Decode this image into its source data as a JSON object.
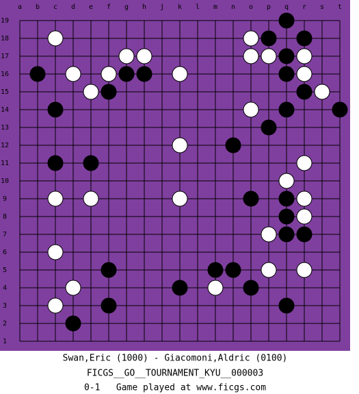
{
  "board": {
    "columns": [
      "a",
      "b",
      "c",
      "d",
      "e",
      "f",
      "g",
      "h",
      "j",
      "k",
      "l",
      "m",
      "n",
      "o",
      "p",
      "q",
      "r",
      "s",
      "t"
    ],
    "rows": [
      19,
      18,
      17,
      16,
      15,
      14,
      13,
      12,
      11,
      10,
      9,
      8,
      7,
      6,
      5,
      4,
      3,
      2,
      1
    ],
    "stones": [
      {
        "col": "q",
        "row": 19,
        "color": "black"
      },
      {
        "col": "c",
        "row": 18,
        "color": "white"
      },
      {
        "col": "o",
        "row": 18,
        "color": "white"
      },
      {
        "col": "p",
        "row": 18,
        "color": "black"
      },
      {
        "col": "r",
        "row": 18,
        "color": "black"
      },
      {
        "col": "g",
        "row": 17,
        "color": "white"
      },
      {
        "col": "h",
        "row": 17,
        "color": "white"
      },
      {
        "col": "o",
        "row": 17,
        "color": "white"
      },
      {
        "col": "p",
        "row": 17,
        "color": "white"
      },
      {
        "col": "q",
        "row": 17,
        "color": "black"
      },
      {
        "col": "r",
        "row": 17,
        "color": "white"
      },
      {
        "col": "b",
        "row": 16,
        "color": "black"
      },
      {
        "col": "d",
        "row": 16,
        "color": "white"
      },
      {
        "col": "f",
        "row": 16,
        "color": "white"
      },
      {
        "col": "g",
        "row": 16,
        "color": "black"
      },
      {
        "col": "h",
        "row": 16,
        "color": "black"
      },
      {
        "col": "k",
        "row": 16,
        "color": "white"
      },
      {
        "col": "q",
        "row": 16,
        "color": "black"
      },
      {
        "col": "r",
        "row": 16,
        "color": "white"
      },
      {
        "col": "e",
        "row": 15,
        "color": "white"
      },
      {
        "col": "f",
        "row": 15,
        "color": "black"
      },
      {
        "col": "r",
        "row": 15,
        "color": "black"
      },
      {
        "col": "s",
        "row": 15,
        "color": "white"
      },
      {
        "col": "c",
        "row": 14,
        "color": "black"
      },
      {
        "col": "o",
        "row": 14,
        "color": "white"
      },
      {
        "col": "q",
        "row": 14,
        "color": "black"
      },
      {
        "col": "t",
        "row": 14,
        "color": "black"
      },
      {
        "col": "p",
        "row": 13,
        "color": "black"
      },
      {
        "col": "k",
        "row": 12,
        "color": "white"
      },
      {
        "col": "n",
        "row": 12,
        "color": "black"
      },
      {
        "col": "c",
        "row": 11,
        "color": "black"
      },
      {
        "col": "e",
        "row": 11,
        "color": "black"
      },
      {
        "col": "r",
        "row": 11,
        "color": "white"
      },
      {
        "col": "q",
        "row": 10,
        "color": "white"
      },
      {
        "col": "c",
        "row": 9,
        "color": "white"
      },
      {
        "col": "e",
        "row": 9,
        "color": "white"
      },
      {
        "col": "k",
        "row": 9,
        "color": "white"
      },
      {
        "col": "o",
        "row": 9,
        "color": "black"
      },
      {
        "col": "q",
        "row": 9,
        "color": "black"
      },
      {
        "col": "r",
        "row": 9,
        "color": "white"
      },
      {
        "col": "q",
        "row": 8,
        "color": "black"
      },
      {
        "col": "r",
        "row": 8,
        "color": "white"
      },
      {
        "col": "p",
        "row": 7,
        "color": "white"
      },
      {
        "col": "q",
        "row": 7,
        "color": "black"
      },
      {
        "col": "r",
        "row": 7,
        "color": "black"
      },
      {
        "col": "c",
        "row": 6,
        "color": "white"
      },
      {
        "col": "f",
        "row": 5,
        "color": "black"
      },
      {
        "col": "m",
        "row": 5,
        "color": "black"
      },
      {
        "col": "n",
        "row": 5,
        "color": "black"
      },
      {
        "col": "p",
        "row": 5,
        "color": "white"
      },
      {
        "col": "r",
        "row": 5,
        "color": "white"
      },
      {
        "col": "d",
        "row": 4,
        "color": "white"
      },
      {
        "col": "k",
        "row": 4,
        "color": "black"
      },
      {
        "col": "m",
        "row": 4,
        "color": "white"
      },
      {
        "col": "o",
        "row": 4,
        "color": "black"
      },
      {
        "col": "c",
        "row": 3,
        "color": "white"
      },
      {
        "col": "f",
        "row": 3,
        "color": "black"
      },
      {
        "col": "q",
        "row": 3,
        "color": "black"
      },
      {
        "col": "d",
        "row": 2,
        "color": "black"
      }
    ]
  },
  "footer": {
    "players": "Swan,Eric (1000) - Giacomoni,Aldric (0100)",
    "event": "FICGS__GO__TOURNAMENT_KYU__000003",
    "result": "0-1   Game played at www.ficgs.com"
  }
}
